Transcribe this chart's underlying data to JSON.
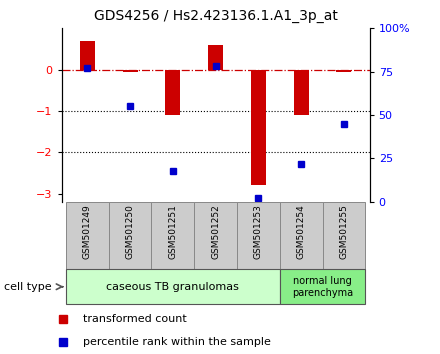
{
  "title": "GDS4256 / Hs2.423136.1.A1_3p_at",
  "samples": [
    "GSM501249",
    "GSM501250",
    "GSM501251",
    "GSM501252",
    "GSM501253",
    "GSM501254",
    "GSM501255"
  ],
  "transformed_counts": [
    0.7,
    -0.05,
    -1.1,
    0.6,
    -2.8,
    -1.1,
    -0.05
  ],
  "percentile_ranks": [
    77,
    55,
    18,
    78,
    2,
    22,
    45
  ],
  "bar_color": "#cc0000",
  "dot_color": "#0000cc",
  "ylim_left": [
    -3.2,
    1.0
  ],
  "ylim_right": [
    0,
    100
  ],
  "yticks_left": [
    0,
    -1,
    -2,
    -3
  ],
  "yticks_right": [
    0,
    25,
    50,
    75,
    100
  ],
  "ytick_right_labels": [
    "0",
    "25",
    "50",
    "75",
    "100%"
  ],
  "dotted_lines": [
    -1,
    -2
  ],
  "group1_indices": [
    0,
    1,
    2,
    3,
    4
  ],
  "group2_indices": [
    5,
    6
  ],
  "group1_label": "caseous TB granulomas",
  "group2_label": "normal lung\nparenchyma",
  "group1_color": "#ccffcc",
  "group2_color": "#88ee88",
  "sample_box_color": "#cccccc",
  "cell_type_label": "cell type",
  "legend_red": "transformed count",
  "legend_blue": "percentile rank within the sample",
  "background_color": "#ffffff",
  "title_fontsize": 10,
  "bar_width": 0.35
}
